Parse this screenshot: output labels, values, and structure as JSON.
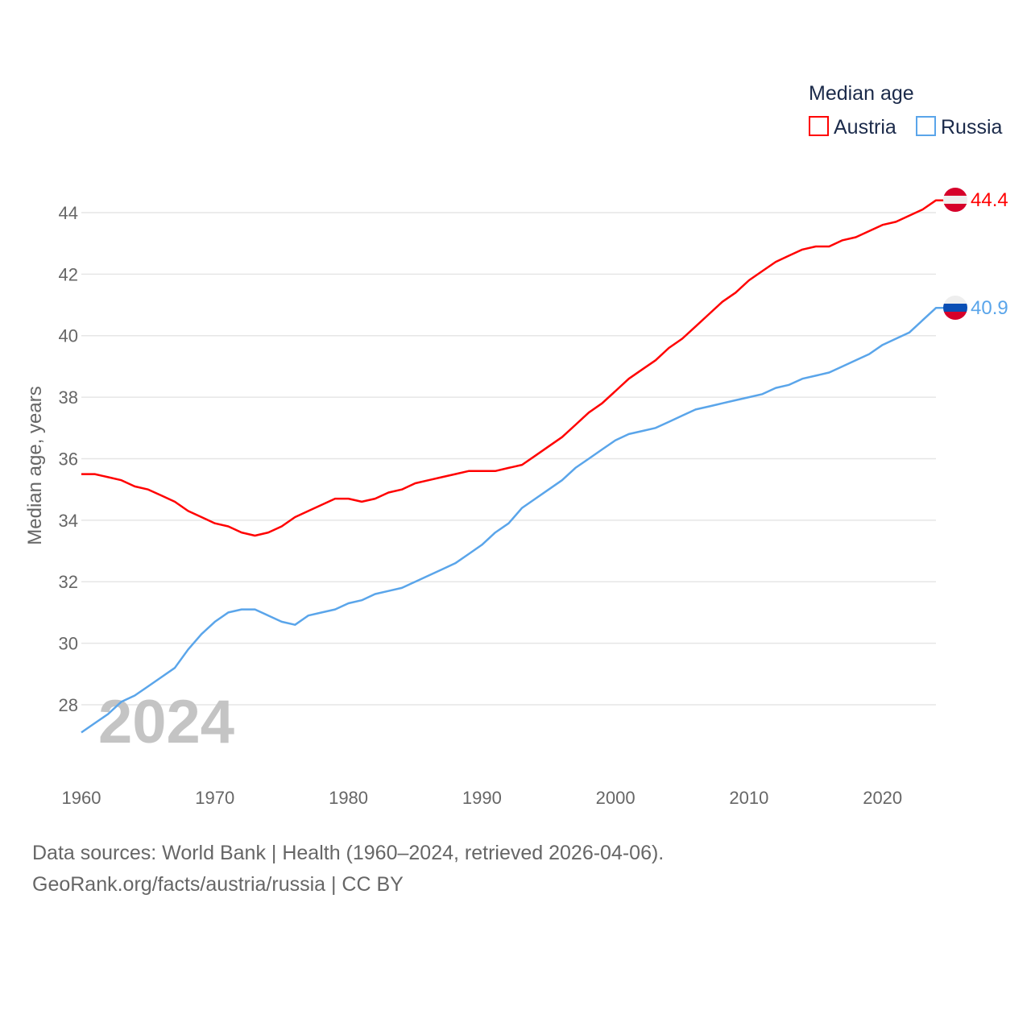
{
  "chart_data": {
    "type": "line",
    "legend_title": "Median age",
    "legend_placement": "top-right",
    "ylabel": "Median age, years",
    "xlabel": "",
    "year_watermark": "2024",
    "xlim": [
      1960,
      2024
    ],
    "ylim": [
      26.5,
      45
    ],
    "yticks": [
      "28",
      "30",
      "32",
      "34",
      "36",
      "38",
      "40",
      "42",
      "44"
    ],
    "xticks": [
      "1960",
      "1970",
      "1980",
      "1990",
      "2000",
      "2010",
      "2020"
    ],
    "grid": true,
    "x": [
      1960,
      1961,
      1962,
      1963,
      1964,
      1965,
      1966,
      1967,
      1968,
      1969,
      1970,
      1971,
      1972,
      1973,
      1974,
      1975,
      1976,
      1977,
      1978,
      1979,
      1980,
      1981,
      1982,
      1983,
      1984,
      1985,
      1986,
      1987,
      1988,
      1989,
      1990,
      1991,
      1992,
      1993,
      1994,
      1995,
      1996,
      1997,
      1998,
      1999,
      2000,
      2001,
      2002,
      2003,
      2004,
      2005,
      2006,
      2007,
      2008,
      2009,
      2010,
      2011,
      2012,
      2013,
      2014,
      2015,
      2016,
      2017,
      2018,
      2019,
      2020,
      2021,
      2022,
      2023,
      2024
    ],
    "series": [
      {
        "name": "Austria",
        "color": "#ff0000",
        "end_label": "44.4",
        "values": [
          35.5,
          35.5,
          35.4,
          35.3,
          35.1,
          35.0,
          34.8,
          34.6,
          34.3,
          34.1,
          33.9,
          33.8,
          33.6,
          33.5,
          33.6,
          33.8,
          34.1,
          34.3,
          34.5,
          34.7,
          34.7,
          34.6,
          34.7,
          34.9,
          35.0,
          35.2,
          35.3,
          35.4,
          35.5,
          35.6,
          35.6,
          35.6,
          35.7,
          35.8,
          36.1,
          36.4,
          36.7,
          37.1,
          37.5,
          37.8,
          38.2,
          38.6,
          38.9,
          39.2,
          39.6,
          39.9,
          40.3,
          40.7,
          41.1,
          41.4,
          41.8,
          42.1,
          42.4,
          42.6,
          42.8,
          42.9,
          42.9,
          43.1,
          43.2,
          43.4,
          43.6,
          43.7,
          43.9,
          44.1,
          44.4
        ]
      },
      {
        "name": "Russia",
        "color": "#5aa5ea",
        "end_label": "40.9",
        "values": [
          27.1,
          27.4,
          27.7,
          28.1,
          28.3,
          28.6,
          28.9,
          29.2,
          29.8,
          30.3,
          30.7,
          31.0,
          31.1,
          31.1,
          30.9,
          30.7,
          30.6,
          30.9,
          31.0,
          31.1,
          31.3,
          31.4,
          31.6,
          31.7,
          31.8,
          32.0,
          32.2,
          32.4,
          32.6,
          32.9,
          33.2,
          33.6,
          33.9,
          34.4,
          34.7,
          35.0,
          35.3,
          35.7,
          36.0,
          36.3,
          36.6,
          36.8,
          36.9,
          37.0,
          37.2,
          37.4,
          37.6,
          37.7,
          37.8,
          37.9,
          38.0,
          38.1,
          38.3,
          38.4,
          38.6,
          38.7,
          38.8,
          39.0,
          39.2,
          39.4,
          39.7,
          39.9,
          40.1,
          40.5,
          40.9
        ]
      }
    ]
  },
  "footer": {
    "line1": "Data sources: World Bank | Health (1960–2024, retrieved 2026-04-06).",
    "line2": "GeoRank.org/facts/austria/russia | CC BY"
  }
}
